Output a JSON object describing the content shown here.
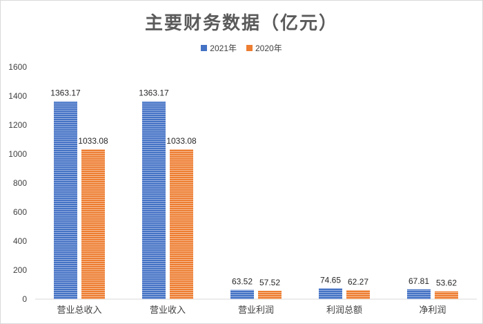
{
  "chart_data": {
    "type": "bar",
    "title": "主要财务数据（亿元）",
    "categories": [
      "营业总收入",
      "营业收入",
      "营业利润",
      "利润总额",
      "净利润"
    ],
    "series": [
      {
        "name": "2021年",
        "values": [
          1363.17,
          1363.17,
          63.52,
          74.65,
          67.81
        ],
        "color": "#4472c4"
      },
      {
        "name": "2020年",
        "values": [
          1033.08,
          1033.08,
          57.52,
          62.27,
          53.62
        ],
        "color": "#ed7d31"
      }
    ],
    "data_labels": [
      [
        "1363.17",
        "1363.17",
        "63.52",
        "74.65",
        "67.81"
      ],
      [
        "1033.08",
        "1033.08",
        "57.52",
        "62.27",
        "53.62"
      ]
    ],
    "yticks": [
      "0",
      "200",
      "400",
      "600",
      "800",
      "1000",
      "1200",
      "1400",
      "1600"
    ],
    "ylim": [
      0,
      1600
    ],
    "xlabel": "",
    "ylabel": "",
    "grid": false,
    "legend_position": "top-center"
  }
}
